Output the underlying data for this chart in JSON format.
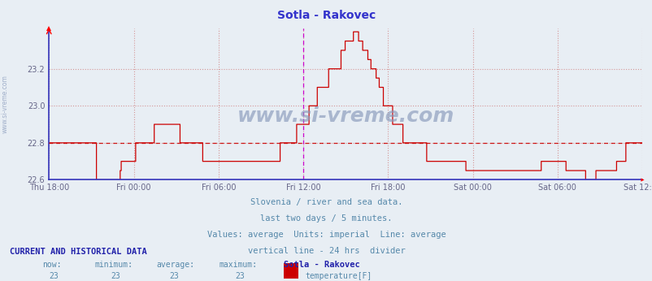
{
  "title": "Sotla - Rakovec",
  "title_color": "#3333cc",
  "bg_color": "#e8eef4",
  "plot_bg_color": "#e8eef4",
  "grid_color": "#d08080",
  "ylim": [
    22.6,
    23.42
  ],
  "yticks": [
    22.6,
    22.8,
    23.0,
    23.2
  ],
  "ylabel_color": "#666688",
  "axis_color": "#3333bb",
  "xlabel_labels": [
    "Thu 18:00",
    "Fri 00:00",
    "Fri 06:00",
    "Fri 12:00",
    "Fri 18:00",
    "Sat 00:00",
    "Sat 06:00",
    "Sat 12:00"
  ],
  "xtick_pos": [
    0,
    6,
    12,
    18,
    24,
    30,
    36,
    42
  ],
  "line_color": "#cc0000",
  "avg_line_y": 22.8,
  "avg_line_color": "#cc0000",
  "vline_x": 18.0,
  "vline_color": "#cc00cc",
  "subtitle_lines": [
    "Slovenia / river and sea data.",
    "last two days / 5 minutes.",
    "Values: average  Units: imperial  Line: average",
    "vertical line - 24 hrs  divider"
  ],
  "subtitle_color": "#5588aa",
  "footer_title_color": "#2222aa",
  "footer_label_color": "#5588aa",
  "footer_value_color": "#5588aa",
  "legend_color": "#cc0000",
  "watermark_text": "www.si-vreme.com",
  "watermark_color": "#8899bb",
  "data_values": [
    22.8,
    22.8,
    22.8,
    22.8,
    22.8,
    22.8,
    22.8,
    22.8,
    22.8,
    22.8,
    22.8,
    22.8,
    22.8,
    22.8,
    22.8,
    22.8,
    22.8,
    22.8,
    22.8,
    22.8,
    22.8,
    22.8,
    22.8,
    22.8,
    22.8,
    22.8,
    22.8,
    22.8,
    22.8,
    22.8,
    22.8,
    22.8,
    22.8,
    22.8,
    22.8,
    22.8,
    22.8,
    22.8,
    22.8,
    22.8,
    22.8,
    22.8,
    22.8,
    22.8,
    22.8,
    22.8,
    22.6,
    22.6,
    22.6,
    22.6,
    22.6,
    22.6,
    22.6,
    22.6,
    22.6,
    22.6,
    22.6,
    22.6,
    22.6,
    22.6,
    22.6,
    22.6,
    22.6,
    22.6,
    22.6,
    22.6,
    22.6,
    22.6,
    22.6,
    22.65,
    22.7,
    22.7,
    22.7,
    22.7,
    22.7,
    22.7,
    22.7,
    22.7,
    22.7,
    22.7,
    22.7,
    22.7,
    22.7,
    22.7,
    22.8,
    22.8,
    22.8,
    22.8,
    22.8,
    22.8,
    22.8,
    22.8,
    22.8,
    22.8,
    22.8,
    22.8,
    22.8,
    22.8,
    22.8,
    22.8,
    22.8,
    22.8,
    22.9,
    22.9,
    22.9,
    22.9,
    22.9,
    22.9,
    22.9,
    22.9,
    22.9,
    22.9,
    22.9,
    22.9,
    22.9,
    22.9,
    22.9,
    22.9,
    22.9,
    22.9,
    22.9,
    22.9,
    22.9,
    22.9,
    22.9,
    22.9,
    22.9,
    22.8,
    22.8,
    22.8,
    22.8,
    22.8,
    22.8,
    22.8,
    22.8,
    22.8,
    22.8,
    22.8,
    22.8,
    22.8,
    22.8,
    22.8,
    22.8,
    22.8,
    22.8,
    22.8,
    22.8,
    22.8,
    22.8,
    22.7,
    22.7,
    22.7,
    22.7,
    22.7,
    22.7,
    22.7,
    22.7,
    22.7,
    22.7,
    22.7,
    22.7,
    22.7,
    22.7,
    22.7,
    22.7,
    22.7,
    22.7,
    22.7,
    22.7,
    22.7,
    22.7,
    22.7,
    22.7,
    22.7,
    22.7,
    22.7,
    22.7,
    22.7,
    22.7,
    22.7,
    22.7,
    22.7,
    22.7,
    22.7,
    22.7,
    22.7,
    22.7,
    22.7,
    22.7,
    22.7,
    22.7,
    22.7,
    22.7,
    22.7,
    22.7,
    22.7,
    22.7,
    22.7,
    22.7,
    22.7,
    22.7,
    22.7,
    22.7,
    22.7,
    22.7,
    22.7,
    22.7,
    22.7,
    22.7,
    22.7,
    22.7,
    22.7,
    22.7,
    22.7,
    22.7,
    22.7,
    22.7,
    22.7,
    22.7,
    22.7,
    22.7,
    22.7,
    22.7,
    22.7,
    22.8,
    22.8,
    22.8,
    22.8,
    22.8,
    22.8,
    22.8,
    22.8,
    22.8,
    22.8,
    22.8,
    22.8,
    22.8,
    22.8,
    22.8,
    22.8,
    22.9,
    22.9,
    22.9,
    22.9,
    22.9,
    22.9,
    22.9,
    22.9,
    22.9,
    22.9,
    22.9,
    22.9,
    23.0,
    23.0,
    23.0,
    23.0,
    23.0,
    23.0,
    23.0,
    23.0,
    23.1,
    23.1,
    23.1,
    23.1,
    23.1,
    23.1,
    23.1,
    23.1,
    23.1,
    23.1,
    23.1,
    23.2,
    23.2,
    23.2,
    23.2,
    23.2,
    23.2,
    23.2,
    23.2,
    23.2,
    23.2,
    23.2,
    23.2,
    23.3,
    23.3,
    23.3,
    23.3,
    23.35,
    23.35,
    23.35,
    23.35,
    23.35,
    23.35,
    23.35,
    23.35,
    23.4,
    23.4,
    23.4,
    23.4,
    23.4,
    23.35,
    23.35,
    23.35,
    23.35,
    23.3,
    23.3,
    23.3,
    23.3,
    23.3,
    23.25,
    23.25,
    23.25,
    23.2,
    23.2,
    23.2,
    23.2,
    23.2,
    23.15,
    23.15,
    23.15,
    23.1,
    23.1,
    23.1,
    23.1,
    23.0,
    23.0,
    23.0,
    23.0,
    23.0,
    23.0,
    23.0,
    23.0,
    23.0,
    22.9,
    22.9,
    22.9,
    22.9,
    22.9,
    22.9,
    22.9,
    22.9,
    22.9,
    22.9,
    22.8,
    22.8,
    22.8,
    22.8,
    22.8,
    22.8,
    22.8,
    22.8,
    22.8,
    22.8,
    22.8,
    22.8,
    22.8,
    22.8,
    22.8,
    22.8,
    22.8,
    22.8,
    22.8,
    22.8,
    22.8,
    22.8,
    22.8,
    22.7,
    22.7,
    22.7,
    22.7,
    22.7,
    22.7,
    22.7,
    22.7,
    22.7,
    22.7,
    22.7,
    22.7,
    22.7,
    22.7,
    22.7,
    22.7,
    22.7,
    22.7,
    22.7,
    22.7,
    22.7,
    22.7,
    22.7,
    22.7,
    22.7,
    22.7,
    22.7,
    22.7,
    22.7,
    22.7,
    22.7,
    22.7,
    22.7,
    22.7,
    22.7,
    22.7,
    22.7,
    22.7,
    22.65,
    22.65,
    22.65,
    22.65,
    22.65,
    22.65,
    22.65,
    22.65,
    22.65,
    22.65,
    22.65,
    22.65,
    22.65,
    22.65,
    22.65,
    22.65,
    22.65,
    22.65,
    22.65,
    22.65,
    22.65,
    22.65,
    22.65,
    22.65,
    22.65,
    22.65,
    22.65,
    22.65,
    22.65,
    22.65,
    22.65,
    22.65,
    22.65,
    22.65,
    22.65,
    22.65,
    22.65,
    22.65,
    22.65,
    22.65,
    22.65,
    22.65,
    22.65,
    22.65,
    22.65,
    22.65,
    22.65,
    22.65,
    22.65,
    22.65,
    22.65,
    22.65,
    22.65,
    22.65,
    22.65,
    22.65,
    22.65,
    22.65,
    22.65,
    22.65,
    22.65,
    22.65,
    22.65,
    22.65,
    22.65,
    22.65,
    22.65,
    22.65,
    22.65,
    22.65,
    22.65,
    22.65,
    22.65,
    22.7,
    22.7,
    22.7,
    22.7,
    22.7,
    22.7,
    22.7,
    22.7,
    22.7,
    22.7,
    22.7,
    22.7,
    22.7,
    22.7,
    22.7,
    22.7,
    22.7,
    22.7,
    22.7,
    22.7,
    22.7,
    22.7,
    22.7,
    22.7,
    22.65,
    22.65,
    22.65,
    22.65,
    22.65,
    22.65,
    22.65,
    22.65,
    22.65,
    22.65,
    22.65,
    22.65,
    22.65,
    22.65,
    22.65,
    22.65,
    22.65,
    22.65,
    22.65,
    22.6,
    22.6,
    22.6,
    22.6,
    22.6,
    22.6,
    22.6,
    22.6,
    22.6,
    22.6,
    22.65,
    22.65,
    22.65,
    22.65,
    22.65,
    22.65,
    22.65,
    22.65,
    22.65,
    22.65,
    22.65,
    22.65,
    22.65,
    22.65,
    22.65,
    22.65,
    22.65,
    22.65,
    22.65,
    22.65,
    22.7,
    22.7,
    22.7,
    22.7,
    22.7,
    22.7,
    22.7,
    22.7,
    22.7,
    22.8,
    22.8,
    22.8,
    22.8,
    22.8,
    22.8,
    22.8,
    22.8,
    22.8,
    22.8,
    22.8,
    22.8,
    22.8,
    22.8,
    22.8,
    22.8,
    22.8
  ]
}
